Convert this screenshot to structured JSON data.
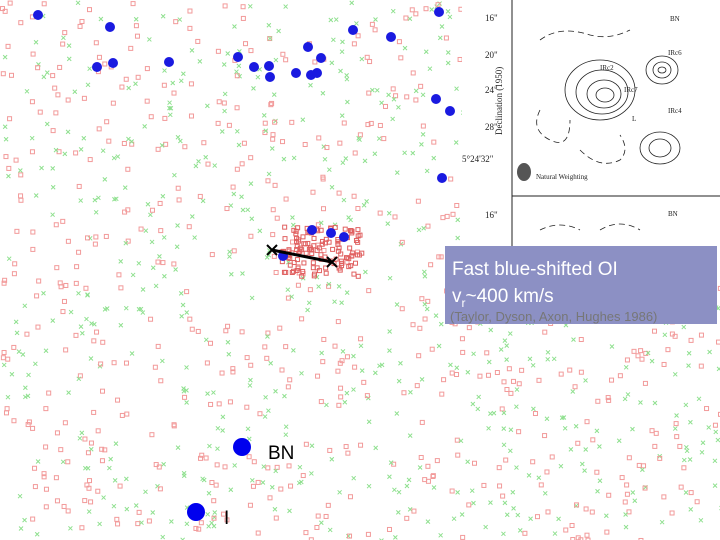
{
  "inset": {
    "ticks_top": [
      "16\"",
      "20\"",
      "24\"",
      "28\"",
      "5°24'32\""
    ],
    "axis_label": "Declination (1950)",
    "labels": [
      "BN",
      "IRc6",
      "IRc2",
      "IRc7",
      "IRc4",
      "L"
    ],
    "beam_label": "Natural Weighting",
    "tick_bottom": "16\"",
    "label_bottom": "BN"
  },
  "textbox": {
    "line1": "Fast blue-shifted OI",
    "line2_symbol": "v",
    "line2_subscript": "r",
    "line2_rest": "~400 km/s",
    "citation": "(Taylor, Dyson, Axon, Hughes 1986)"
  },
  "legend": [
    "BN",
    "I"
  ]
}
